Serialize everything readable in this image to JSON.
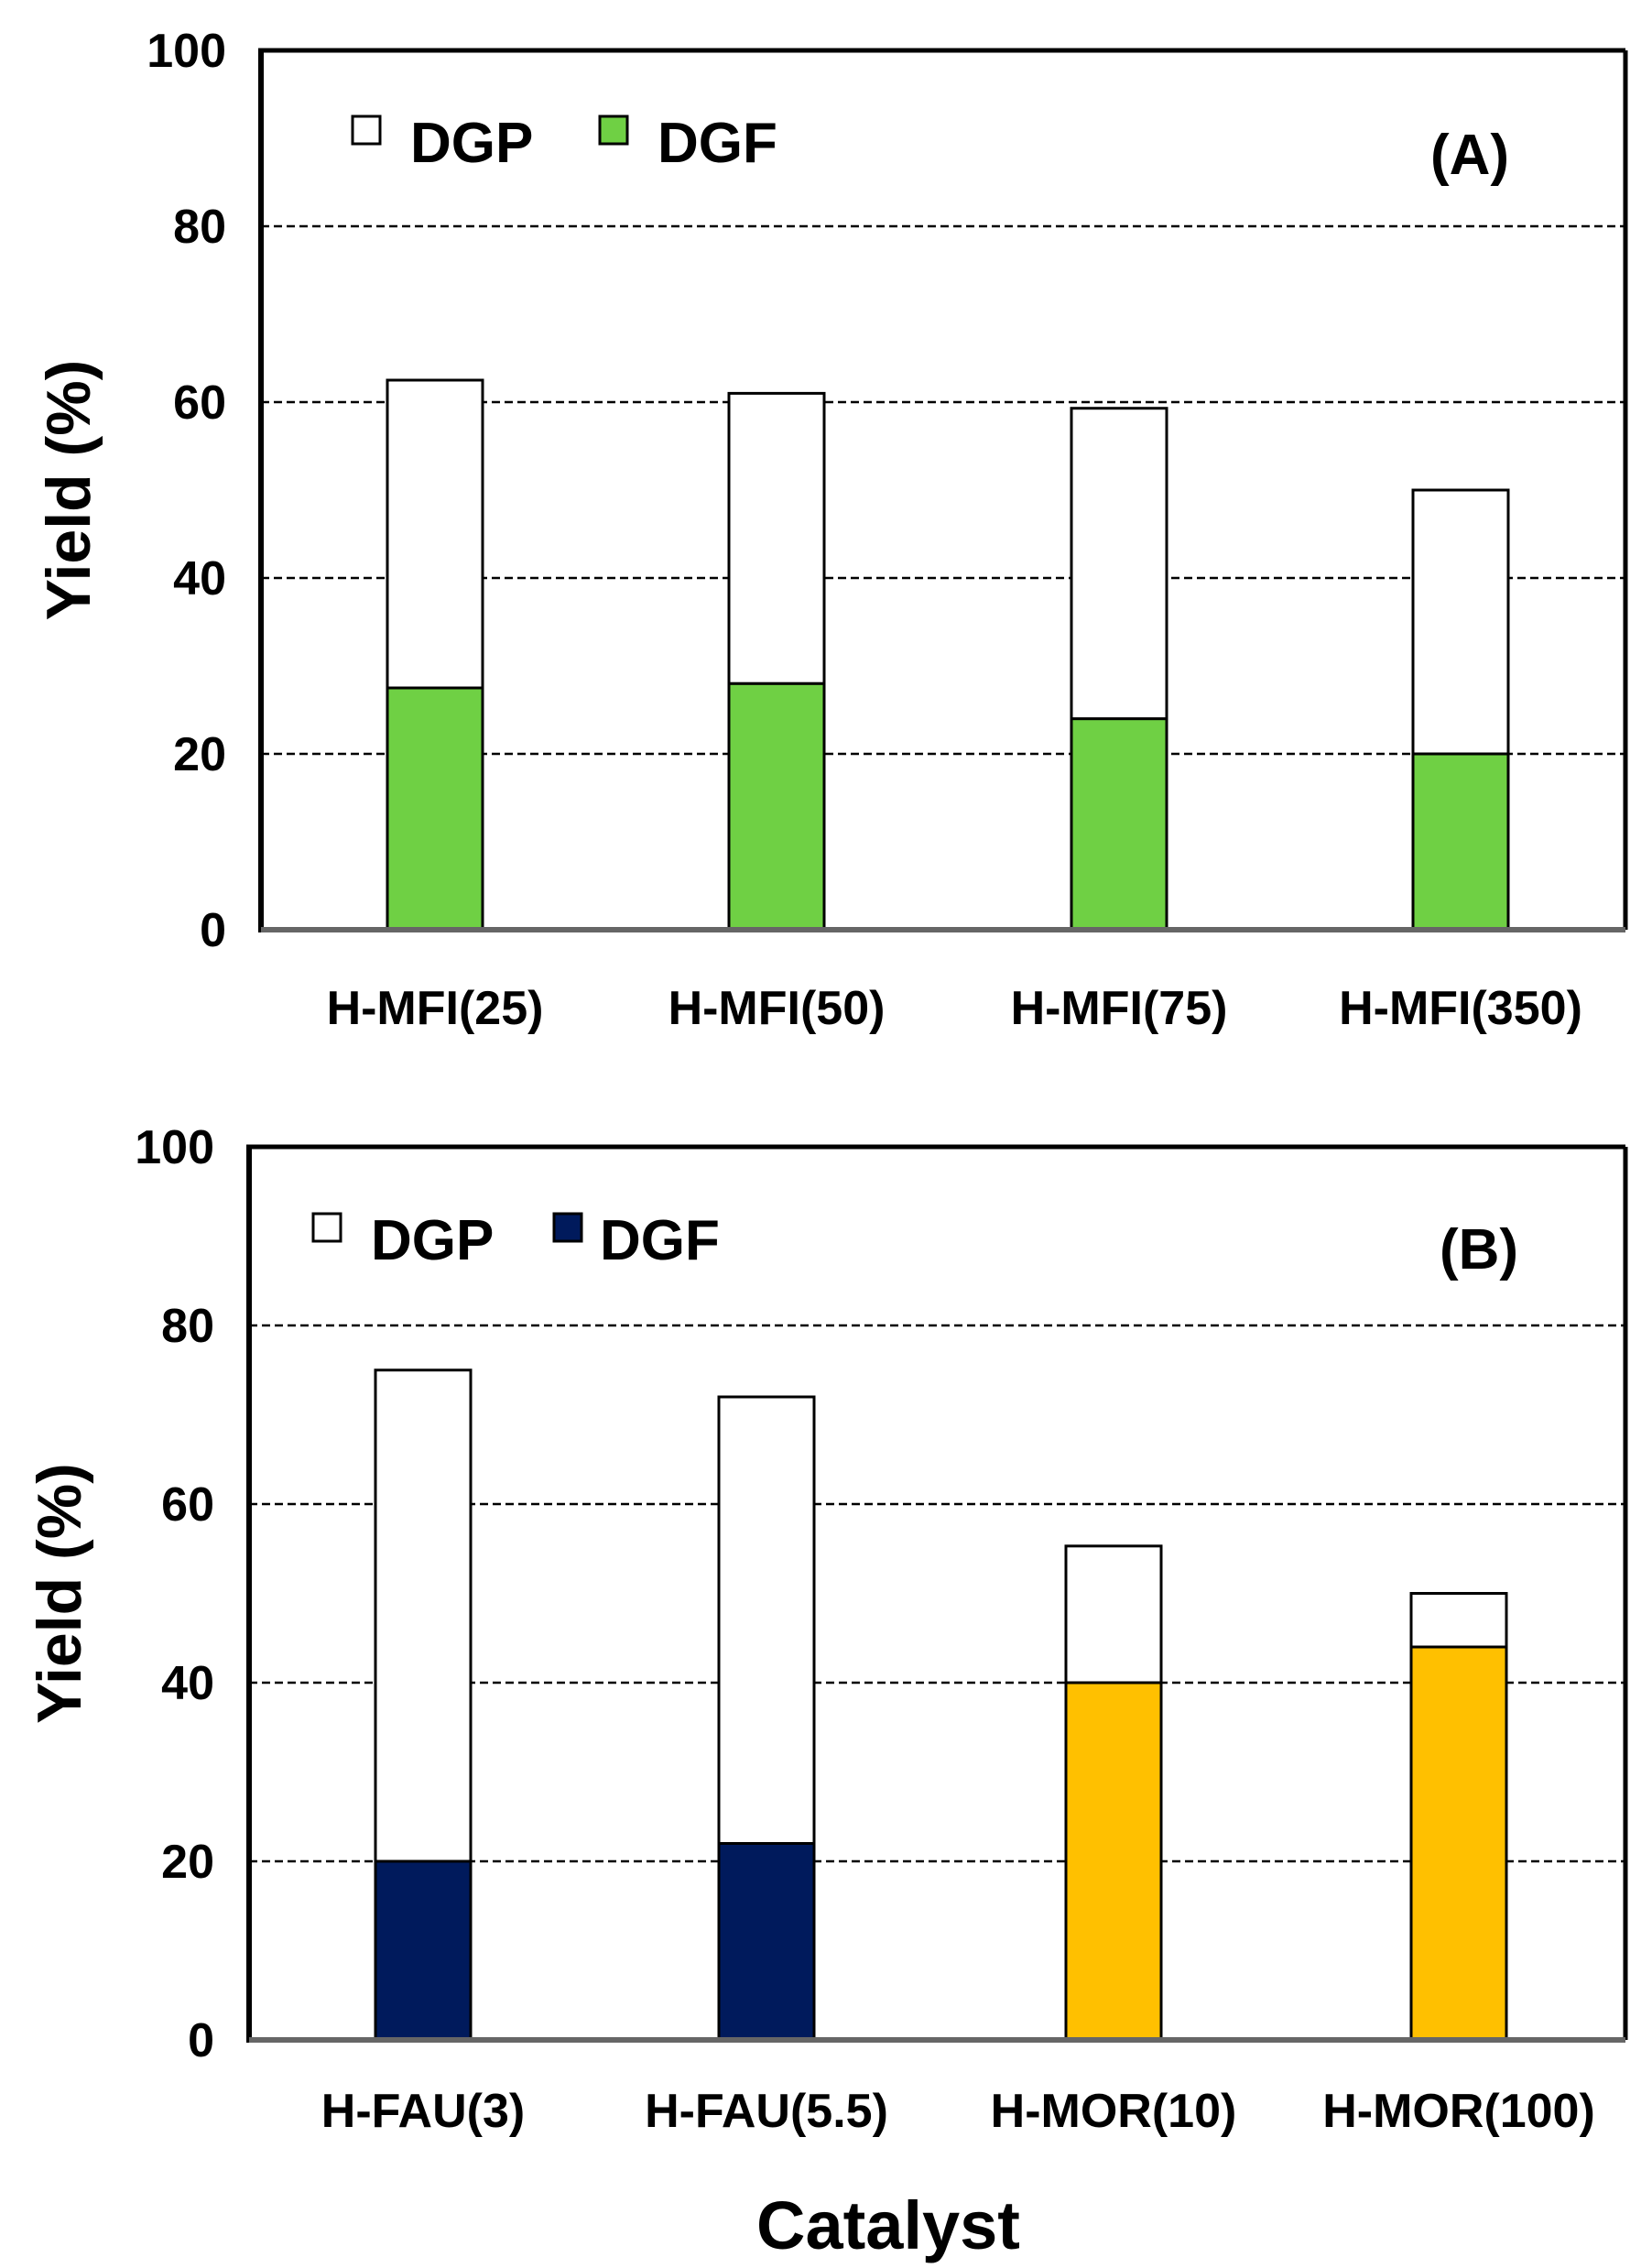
{
  "chart_data": [
    {
      "type": "bar",
      "stacked": true,
      "panel": "(A)",
      "ylabel": "Yield (%)",
      "xlabel": "",
      "ylim": [
        0,
        100
      ],
      "yticks": [
        0,
        20,
        40,
        60,
        80,
        100
      ],
      "ytick_labels": [
        "0",
        "20",
        "40",
        "60",
        "80",
        "100"
      ],
      "grid": "horizontal dashed",
      "legend_position": "top-left",
      "categories": [
        "H-MFI(25)",
        "H-MFI(50)",
        "H-MFI(75)",
        "H-MFI(350)"
      ],
      "series": [
        {
          "name": "DGF",
          "values": [
            27.5,
            28,
            24,
            20
          ],
          "colors": [
            "#6fd044",
            "#6fd044",
            "#6fd044",
            "#6fd044"
          ]
        },
        {
          "name": "DGP",
          "values": [
            35,
            33,
            35.3,
            30
          ],
          "colors": [
            "#ffffff",
            "#ffffff",
            "#ffffff",
            "#ffffff"
          ]
        }
      ],
      "legend": [
        {
          "label": "DGP",
          "color": "#ffffff"
        },
        {
          "label": "DGF",
          "color": "#6fd044"
        }
      ]
    },
    {
      "type": "bar",
      "stacked": true,
      "panel": "(B)",
      "ylabel": "Yield (%)",
      "xlabel": "Catalyst",
      "ylim": [
        0,
        100
      ],
      "yticks": [
        0,
        20,
        40,
        60,
        80,
        100
      ],
      "ytick_labels": [
        "0",
        "20",
        "40",
        "60",
        "80",
        "100"
      ],
      "grid": "horizontal dashed",
      "legend_position": "top-left",
      "categories": [
        "H-FAU(3)",
        "H-FAU(5.5)",
        "H-MOR(10)",
        "H-MOR(100)"
      ],
      "series": [
        {
          "name": "DGF",
          "values": [
            20,
            22,
            40,
            44
          ],
          "colors": [
            "#001a5c",
            "#001a5c",
            "#ffc000",
            "#ffc000"
          ]
        },
        {
          "name": "DGP",
          "values": [
            55,
            50,
            15.3,
            6
          ],
          "colors": [
            "#ffffff",
            "#ffffff",
            "#ffffff",
            "#ffffff"
          ]
        }
      ],
      "legend": [
        {
          "label": "DGP",
          "color": "#ffffff"
        },
        {
          "label": "DGF",
          "color": "#001a5c"
        }
      ]
    }
  ]
}
